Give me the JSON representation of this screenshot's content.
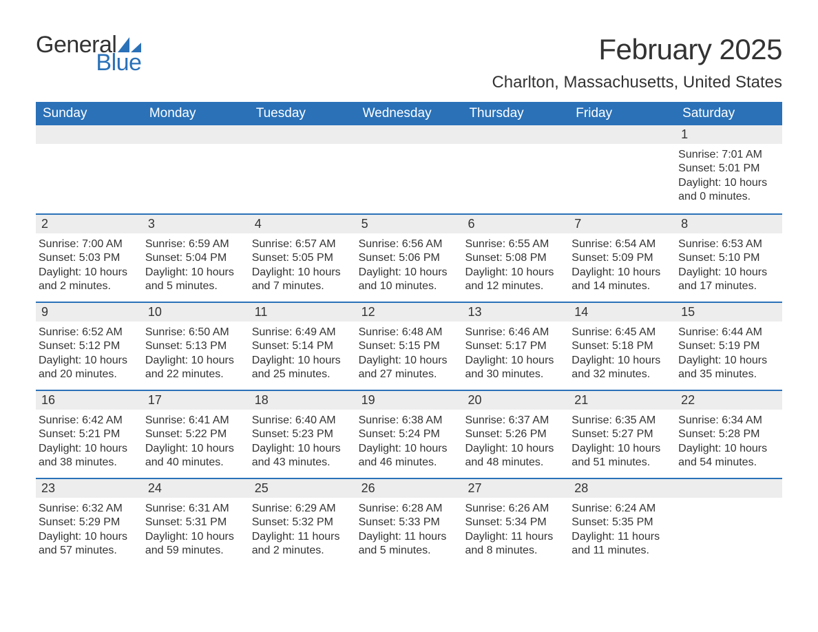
{
  "brand": {
    "word1": "General",
    "word2": "Blue",
    "text_color": "#333333",
    "accent_color": "#2a71b8"
  },
  "header": {
    "title": "February 2025",
    "location": "Charlton, Massachusetts, United States"
  },
  "style": {
    "header_bg": "#2a71b8",
    "header_text": "#ffffff",
    "daynum_bg": "#ededed",
    "border_color": "#2a71b8",
    "body_text": "#333333",
    "title_fontsize": 42,
    "location_fontsize": 24,
    "dow_fontsize": 19,
    "daynum_fontsize": 18,
    "body_fontsize": 16
  },
  "days_of_week": [
    "Sunday",
    "Monday",
    "Tuesday",
    "Wednesday",
    "Thursday",
    "Friday",
    "Saturday"
  ],
  "weeks": [
    [
      {
        "day": null
      },
      {
        "day": null
      },
      {
        "day": null
      },
      {
        "day": null
      },
      {
        "day": null
      },
      {
        "day": null
      },
      {
        "day": 1,
        "sunrise": "7:01 AM",
        "sunset": "5:01 PM",
        "daylight": "10 hours and 0 minutes."
      }
    ],
    [
      {
        "day": 2,
        "sunrise": "7:00 AM",
        "sunset": "5:03 PM",
        "daylight": "10 hours and 2 minutes."
      },
      {
        "day": 3,
        "sunrise": "6:59 AM",
        "sunset": "5:04 PM",
        "daylight": "10 hours and 5 minutes."
      },
      {
        "day": 4,
        "sunrise": "6:57 AM",
        "sunset": "5:05 PM",
        "daylight": "10 hours and 7 minutes."
      },
      {
        "day": 5,
        "sunrise": "6:56 AM",
        "sunset": "5:06 PM",
        "daylight": "10 hours and 10 minutes."
      },
      {
        "day": 6,
        "sunrise": "6:55 AM",
        "sunset": "5:08 PM",
        "daylight": "10 hours and 12 minutes."
      },
      {
        "day": 7,
        "sunrise": "6:54 AM",
        "sunset": "5:09 PM",
        "daylight": "10 hours and 14 minutes."
      },
      {
        "day": 8,
        "sunrise": "6:53 AM",
        "sunset": "5:10 PM",
        "daylight": "10 hours and 17 minutes."
      }
    ],
    [
      {
        "day": 9,
        "sunrise": "6:52 AM",
        "sunset": "5:12 PM",
        "daylight": "10 hours and 20 minutes."
      },
      {
        "day": 10,
        "sunrise": "6:50 AM",
        "sunset": "5:13 PM",
        "daylight": "10 hours and 22 minutes."
      },
      {
        "day": 11,
        "sunrise": "6:49 AM",
        "sunset": "5:14 PM",
        "daylight": "10 hours and 25 minutes."
      },
      {
        "day": 12,
        "sunrise": "6:48 AM",
        "sunset": "5:15 PM",
        "daylight": "10 hours and 27 minutes."
      },
      {
        "day": 13,
        "sunrise": "6:46 AM",
        "sunset": "5:17 PM",
        "daylight": "10 hours and 30 minutes."
      },
      {
        "day": 14,
        "sunrise": "6:45 AM",
        "sunset": "5:18 PM",
        "daylight": "10 hours and 32 minutes."
      },
      {
        "day": 15,
        "sunrise": "6:44 AM",
        "sunset": "5:19 PM",
        "daylight": "10 hours and 35 minutes."
      }
    ],
    [
      {
        "day": 16,
        "sunrise": "6:42 AM",
        "sunset": "5:21 PM",
        "daylight": "10 hours and 38 minutes."
      },
      {
        "day": 17,
        "sunrise": "6:41 AM",
        "sunset": "5:22 PM",
        "daylight": "10 hours and 40 minutes."
      },
      {
        "day": 18,
        "sunrise": "6:40 AM",
        "sunset": "5:23 PM",
        "daylight": "10 hours and 43 minutes."
      },
      {
        "day": 19,
        "sunrise": "6:38 AM",
        "sunset": "5:24 PM",
        "daylight": "10 hours and 46 minutes."
      },
      {
        "day": 20,
        "sunrise": "6:37 AM",
        "sunset": "5:26 PM",
        "daylight": "10 hours and 48 minutes."
      },
      {
        "day": 21,
        "sunrise": "6:35 AM",
        "sunset": "5:27 PM",
        "daylight": "10 hours and 51 minutes."
      },
      {
        "day": 22,
        "sunrise": "6:34 AM",
        "sunset": "5:28 PM",
        "daylight": "10 hours and 54 minutes."
      }
    ],
    [
      {
        "day": 23,
        "sunrise": "6:32 AM",
        "sunset": "5:29 PM",
        "daylight": "10 hours and 57 minutes."
      },
      {
        "day": 24,
        "sunrise": "6:31 AM",
        "sunset": "5:31 PM",
        "daylight": "10 hours and 59 minutes."
      },
      {
        "day": 25,
        "sunrise": "6:29 AM",
        "sunset": "5:32 PM",
        "daylight": "11 hours and 2 minutes."
      },
      {
        "day": 26,
        "sunrise": "6:28 AM",
        "sunset": "5:33 PM",
        "daylight": "11 hours and 5 minutes."
      },
      {
        "day": 27,
        "sunrise": "6:26 AM",
        "sunset": "5:34 PM",
        "daylight": "11 hours and 8 minutes."
      },
      {
        "day": 28,
        "sunrise": "6:24 AM",
        "sunset": "5:35 PM",
        "daylight": "11 hours and 11 minutes."
      },
      {
        "day": null
      }
    ]
  ],
  "labels": {
    "sunrise": "Sunrise:",
    "sunset": "Sunset:",
    "daylight": "Daylight:"
  }
}
